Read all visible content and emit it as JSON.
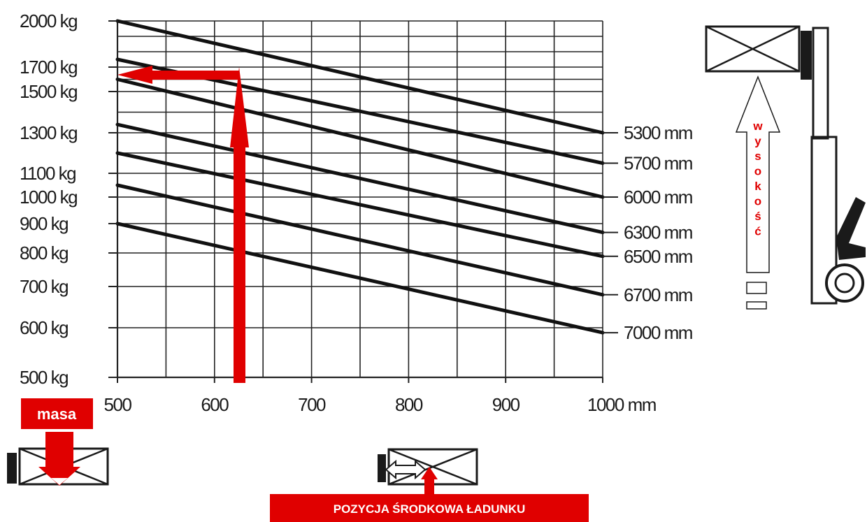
{
  "chart_data": {
    "type": "line",
    "x_ticks": [
      "500",
      "600",
      "700",
      "800",
      "900",
      "1000 mm"
    ],
    "y_ticks": [
      "2000 kg",
      "1700 kg",
      "1500 kg",
      "1300 kg",
      "1100 kg",
      "1000 kg",
      "900 kg",
      "800 kg",
      "700 kg",
      "600 kg",
      "500 kg"
    ],
    "series_labels": [
      "5300 mm",
      "5700 mm",
      "6000 mm",
      "6300 mm",
      "6500 mm",
      "6700 mm",
      "7000 mm"
    ],
    "series": [
      {
        "name": "5300 mm",
        "x": [
          500,
          1000
        ],
        "y": [
          2000,
          1300
        ]
      },
      {
        "name": "5700 mm",
        "x": [
          500,
          1000
        ],
        "y": [
          1750,
          1150
        ]
      },
      {
        "name": "6000 mm",
        "x": [
          500,
          1000
        ],
        "y": [
          1600,
          1000
        ]
      },
      {
        "name": "6300 mm",
        "x": [
          500,
          1000
        ],
        "y": [
          1340,
          870
        ]
      },
      {
        "name": "6500 mm",
        "x": [
          500,
          1000
        ],
        "y": [
          1200,
          790
        ]
      },
      {
        "name": "6700 mm",
        "x": [
          500,
          1000
        ],
        "y": [
          1050,
          680
        ]
      },
      {
        "name": "7000 mm",
        "x": [
          500,
          1000
        ],
        "y": [
          900,
          590
        ]
      }
    ],
    "annotation_example": {
      "x": 600,
      "y": 1600
    },
    "xlim": [
      500,
      1000
    ],
    "ylim": [
      500,
      2000
    ],
    "grid": true
  },
  "annotations": {
    "mass_label": "masa",
    "height_label": "wysokość",
    "center_label": "POZYCJA ŚRODKOWA ŁADUNKU"
  },
  "colors": {
    "accent": "#e00000",
    "line": "#111111",
    "grid": "#222222"
  }
}
